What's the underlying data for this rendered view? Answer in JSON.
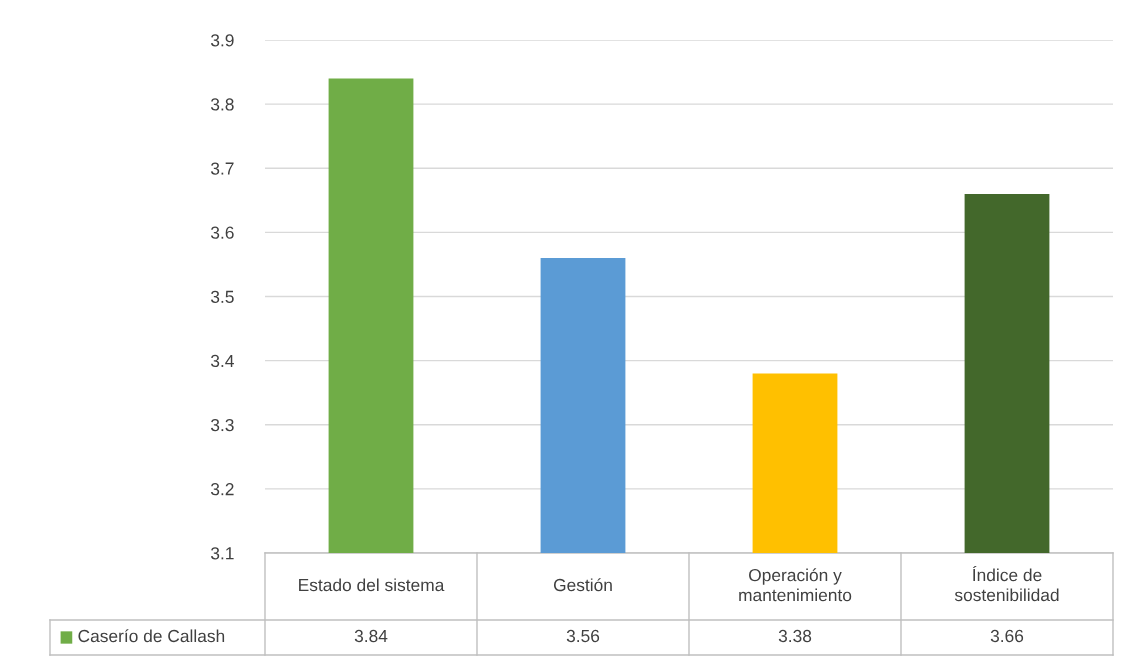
{
  "chart_data": {
    "type": "bar",
    "categories": [
      "Estado del sistema",
      "Gestión",
      "Operación y mantenimiento",
      "Índice de sostenibilidad"
    ],
    "series": [
      {
        "name": "Caserío de Callash",
        "values": [
          3.84,
          3.56,
          3.38,
          3.66
        ]
      }
    ],
    "colors": [
      "#70ad47",
      "#5b9bd5",
      "#ffc000",
      "#43682b"
    ],
    "ylim": [
      3.1,
      3.9
    ],
    "yticks": [
      3.1,
      3.2,
      3.3,
      3.4,
      3.5,
      3.6,
      3.7,
      3.8,
      3.9
    ],
    "grid": "y",
    "data_labels": true
  }
}
